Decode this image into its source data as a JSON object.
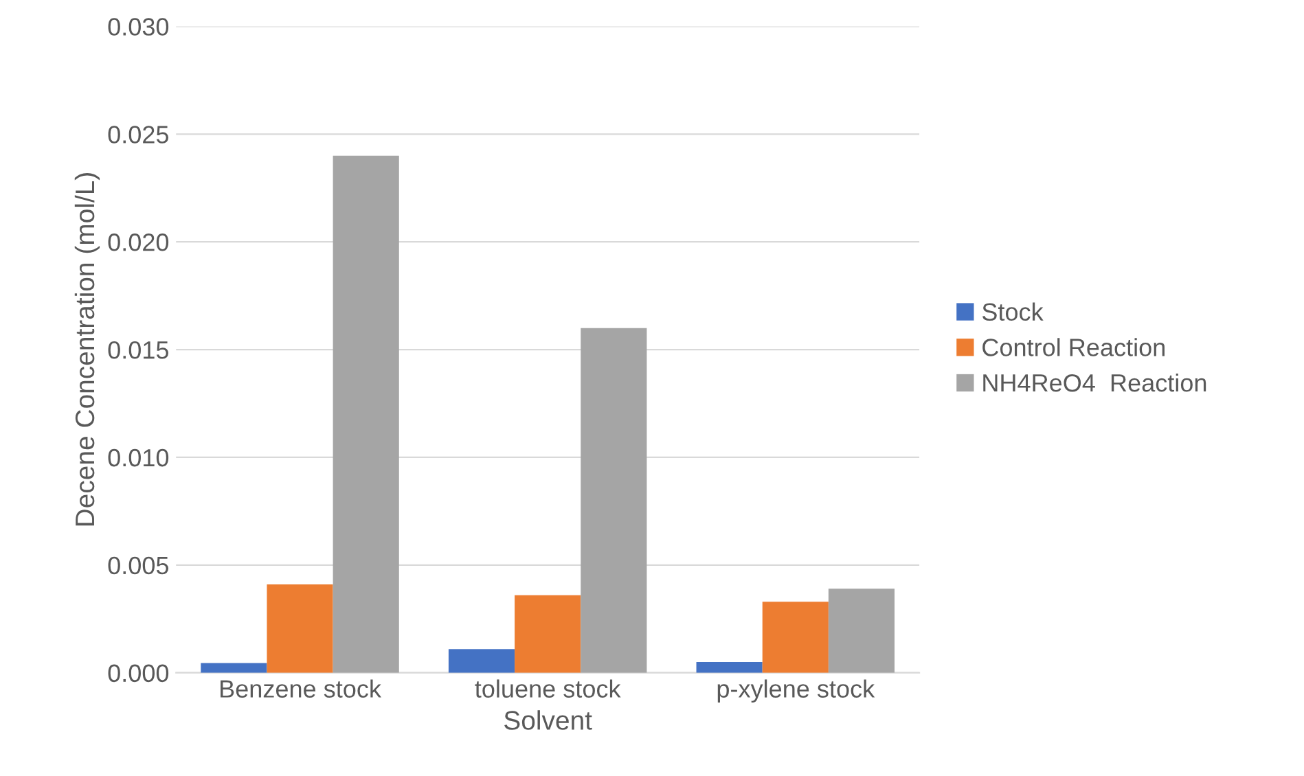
{
  "chart_data": {
    "type": "bar",
    "xlabel": "Solvent",
    "ylabel": "Decene Concentration (mol/L)",
    "categories": [
      "Benzene stock",
      "toluene stock",
      "p-xylene stock"
    ],
    "series": [
      {
        "name": "Stock",
        "color": "#4472c4",
        "values": [
          0.00045,
          0.0011,
          0.0005
        ]
      },
      {
        "name": "Control Reaction",
        "color": "#ed7d31",
        "values": [
          0.0041,
          0.0036,
          0.0033
        ]
      },
      {
        "name": "NH4ReO4  Reaction",
        "color": "#a5a5a5",
        "values": [
          0.024,
          0.016,
          0.0039
        ]
      }
    ],
    "ylim": [
      0,
      0.03
    ],
    "yticks": [
      {
        "value": 0,
        "label": "0.000"
      },
      {
        "value": 0.005,
        "label": "0.005"
      },
      {
        "value": 0.01,
        "label": "0.010"
      },
      {
        "value": 0.015,
        "label": "0.015"
      },
      {
        "value": 0.02,
        "label": "0.020"
      },
      {
        "value": 0.025,
        "label": "0.025"
      },
      {
        "value": 0.03,
        "label": "0.030"
      }
    ],
    "grid": "y",
    "legend": "right"
  }
}
